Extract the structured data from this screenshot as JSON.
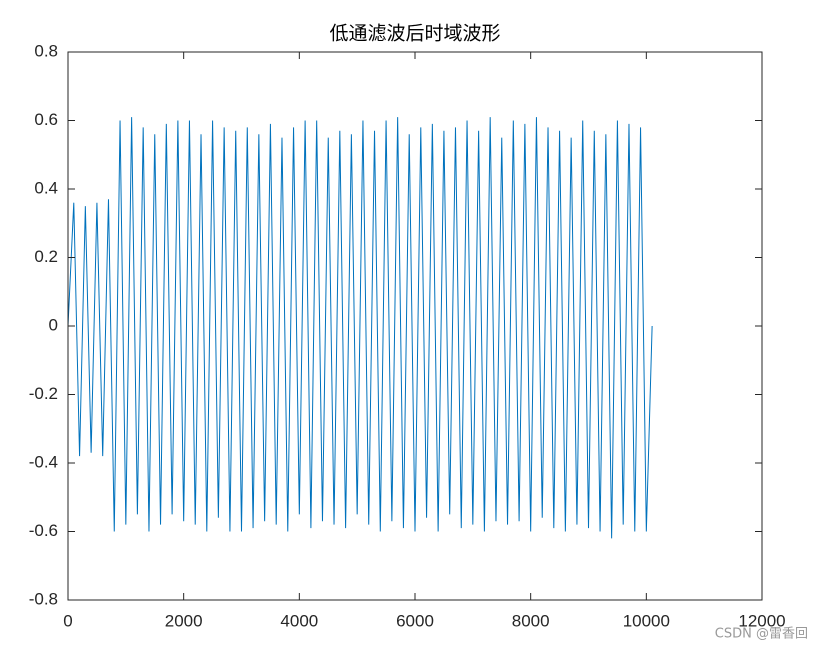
{
  "chart_data": {
    "type": "line",
    "title": "低通滤波后时域波形",
    "watermark": "CSDN @雷香回",
    "color": "#0072bd",
    "xlim": [
      0,
      12000
    ],
    "xticks": [
      0,
      2000,
      4000,
      6000,
      8000,
      10000,
      12000
    ],
    "ylim": [
      -0.8,
      0.8
    ],
    "yticks": [
      -0.8,
      -0.6,
      -0.4,
      -0.2,
      0,
      0.2,
      0.4,
      0.6,
      0.8
    ],
    "x": [
      0,
      100,
      200,
      300,
      400,
      500,
      600,
      700,
      800,
      900,
      1000,
      1100,
      1200,
      1300,
      1400,
      1500,
      1600,
      1700,
      1800,
      1900,
      2000,
      2100,
      2200,
      2300,
      2400,
      2500,
      2600,
      2700,
      2800,
      2900,
      3000,
      3100,
      3200,
      3300,
      3400,
      3500,
      3600,
      3700,
      3800,
      3900,
      4000,
      4100,
      4200,
      4300,
      4400,
      4500,
      4600,
      4700,
      4800,
      4900,
      5000,
      5100,
      5200,
      5300,
      5400,
      5500,
      5600,
      5700,
      5800,
      5900,
      6000,
      6100,
      6200,
      6300,
      6400,
      6500,
      6600,
      6700,
      6800,
      6900,
      7000,
      7100,
      7200,
      7300,
      7400,
      7500,
      7600,
      7700,
      7800,
      7900,
      8000,
      8100,
      8200,
      8300,
      8400,
      8500,
      8600,
      8700,
      8800,
      8900,
      9000,
      9100,
      9200,
      9300,
      9400,
      9500,
      9600,
      9700,
      9800,
      9900,
      10000,
      10100
    ],
    "values": [
      0,
      0.36,
      -0.38,
      0.35,
      -0.37,
      0.36,
      -0.38,
      0.37,
      -0.6,
      0.6,
      -0.58,
      0.61,
      -0.55,
      0.58,
      -0.6,
      0.56,
      -0.58,
      0.59,
      -0.55,
      0.6,
      -0.57,
      0.6,
      -0.58,
      0.56,
      -0.6,
      0.6,
      -0.56,
      0.58,
      -0.6,
      0.57,
      -0.6,
      0.58,
      -0.59,
      0.56,
      -0.57,
      0.59,
      -0.58,
      0.55,
      -0.6,
      0.58,
      -0.55,
      0.6,
      -0.59,
      0.6,
      -0.57,
      0.55,
      -0.58,
      0.57,
      -0.59,
      0.56,
      -0.55,
      0.6,
      -0.58,
      0.57,
      -0.6,
      0.6,
      -0.57,
      0.61,
      -0.59,
      0.56,
      -0.6,
      0.58,
      -0.56,
      0.59,
      -0.6,
      0.57,
      -0.55,
      0.58,
      -0.59,
      0.6,
      -0.58,
      0.57,
      -0.6,
      0.61,
      -0.57,
      0.55,
      -0.58,
      0.6,
      -0.57,
      0.59,
      -0.6,
      0.61,
      -0.56,
      0.58,
      -0.59,
      0.57,
      -0.6,
      0.55,
      -0.58,
      0.6,
      -0.59,
      0.57,
      -0.6,
      0.56,
      -0.62,
      0.6,
      -0.58,
      0.59,
      -0.6,
      0.58,
      -0.6,
      0
    ]
  }
}
